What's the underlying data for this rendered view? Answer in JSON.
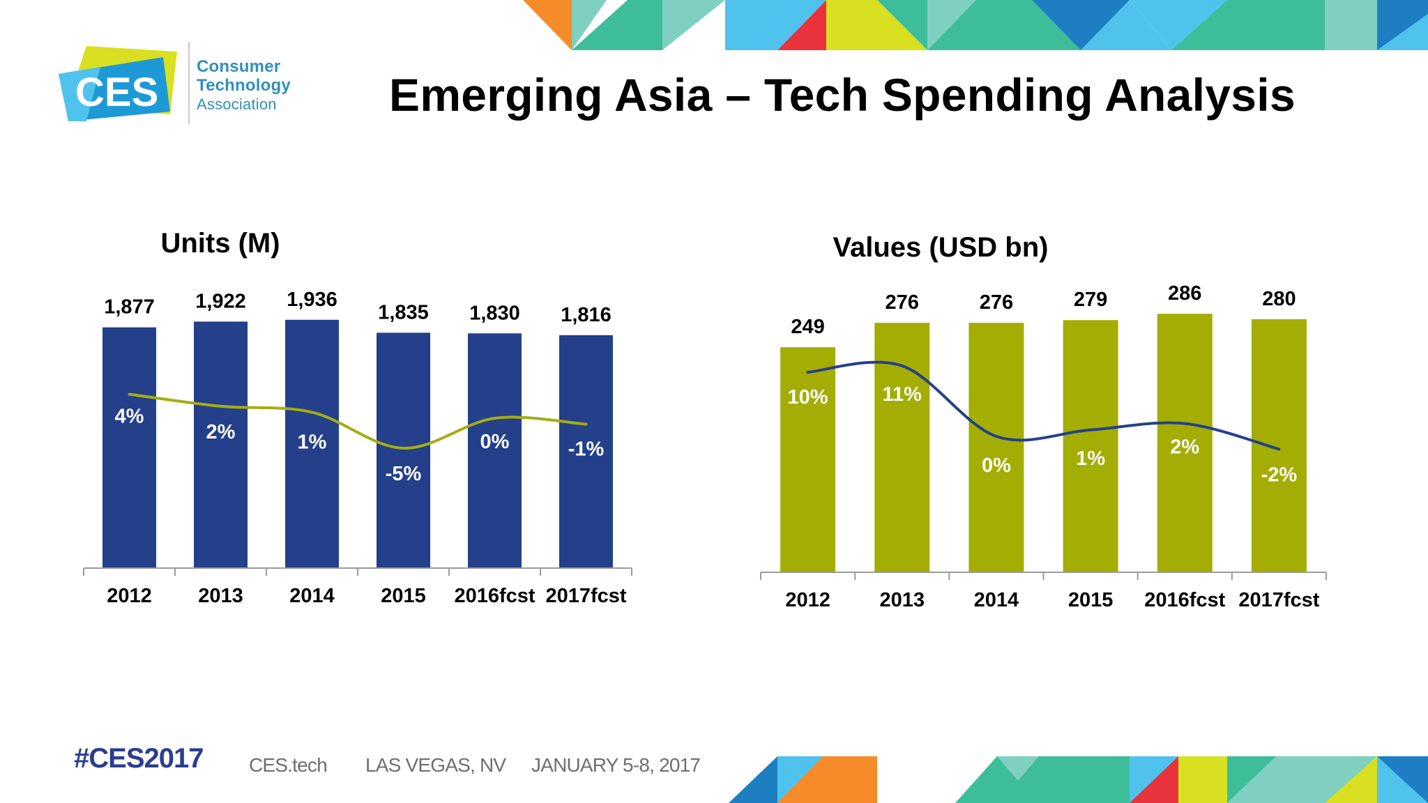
{
  "header": {
    "logo_mark": "CES",
    "logo_lines": [
      "Consumer",
      "Technology",
      "Association"
    ],
    "title": "Emerging Asia – Tech Spending Analysis"
  },
  "chart_data": [
    {
      "type": "bar",
      "title": "Units (M)",
      "categories": [
        "2012",
        "2013",
        "2014",
        "2015",
        "2016fcst",
        "2017fcst"
      ],
      "values": [
        1877,
        1922,
        1936,
        1835,
        1830,
        1816
      ],
      "value_labels": [
        "1,877",
        "1,922",
        "1,936",
        "1,835",
        "1,830",
        "1,816"
      ],
      "growth_line": {
        "values": [
          4,
          2,
          1,
          -5,
          0,
          -1
        ],
        "labels": [
          "4%",
          "2%",
          "1%",
          "-5%",
          "0%",
          "-1%"
        ]
      },
      "bar_color": "#24408a",
      "line_color": "#a4ad12",
      "ylim": [
        0,
        2000
      ],
      "grid": false,
      "legend": "none"
    },
    {
      "type": "bar",
      "title": "Values (USD bn)",
      "categories": [
        "2012",
        "2013",
        "2014",
        "2015",
        "2016fcst",
        "2017fcst"
      ],
      "values": [
        249,
        276,
        276,
        279,
        286,
        280
      ],
      "value_labels": [
        "249",
        "276",
        "276",
        "279",
        "286",
        "280"
      ],
      "growth_line": {
        "values": [
          10,
          11,
          0,
          1,
          2,
          -2
        ],
        "labels": [
          "10%",
          "11%",
          "0%",
          "1%",
          "2%",
          "-2%"
        ]
      },
      "bar_color": "#a4ad03",
      "line_color": "#24408a",
      "ylim": [
        0,
        300
      ],
      "grid": false,
      "legend": "none"
    }
  ],
  "footer": {
    "hashtag": "#CES2017",
    "site": "CES.tech",
    "location": "LAS VEGAS, NV",
    "dates": "JANUARY 5-8, 2017"
  },
  "colors": {
    "orange": "#f68b2a",
    "teal": "#3dbd9a",
    "light_teal": "#7fd0c0",
    "sky": "#4fc3ee",
    "blue": "#1d7fc2",
    "red": "#e8323c",
    "yellow": "#d9e021",
    "navy": "#24408a",
    "olive": "#a4ad03"
  }
}
